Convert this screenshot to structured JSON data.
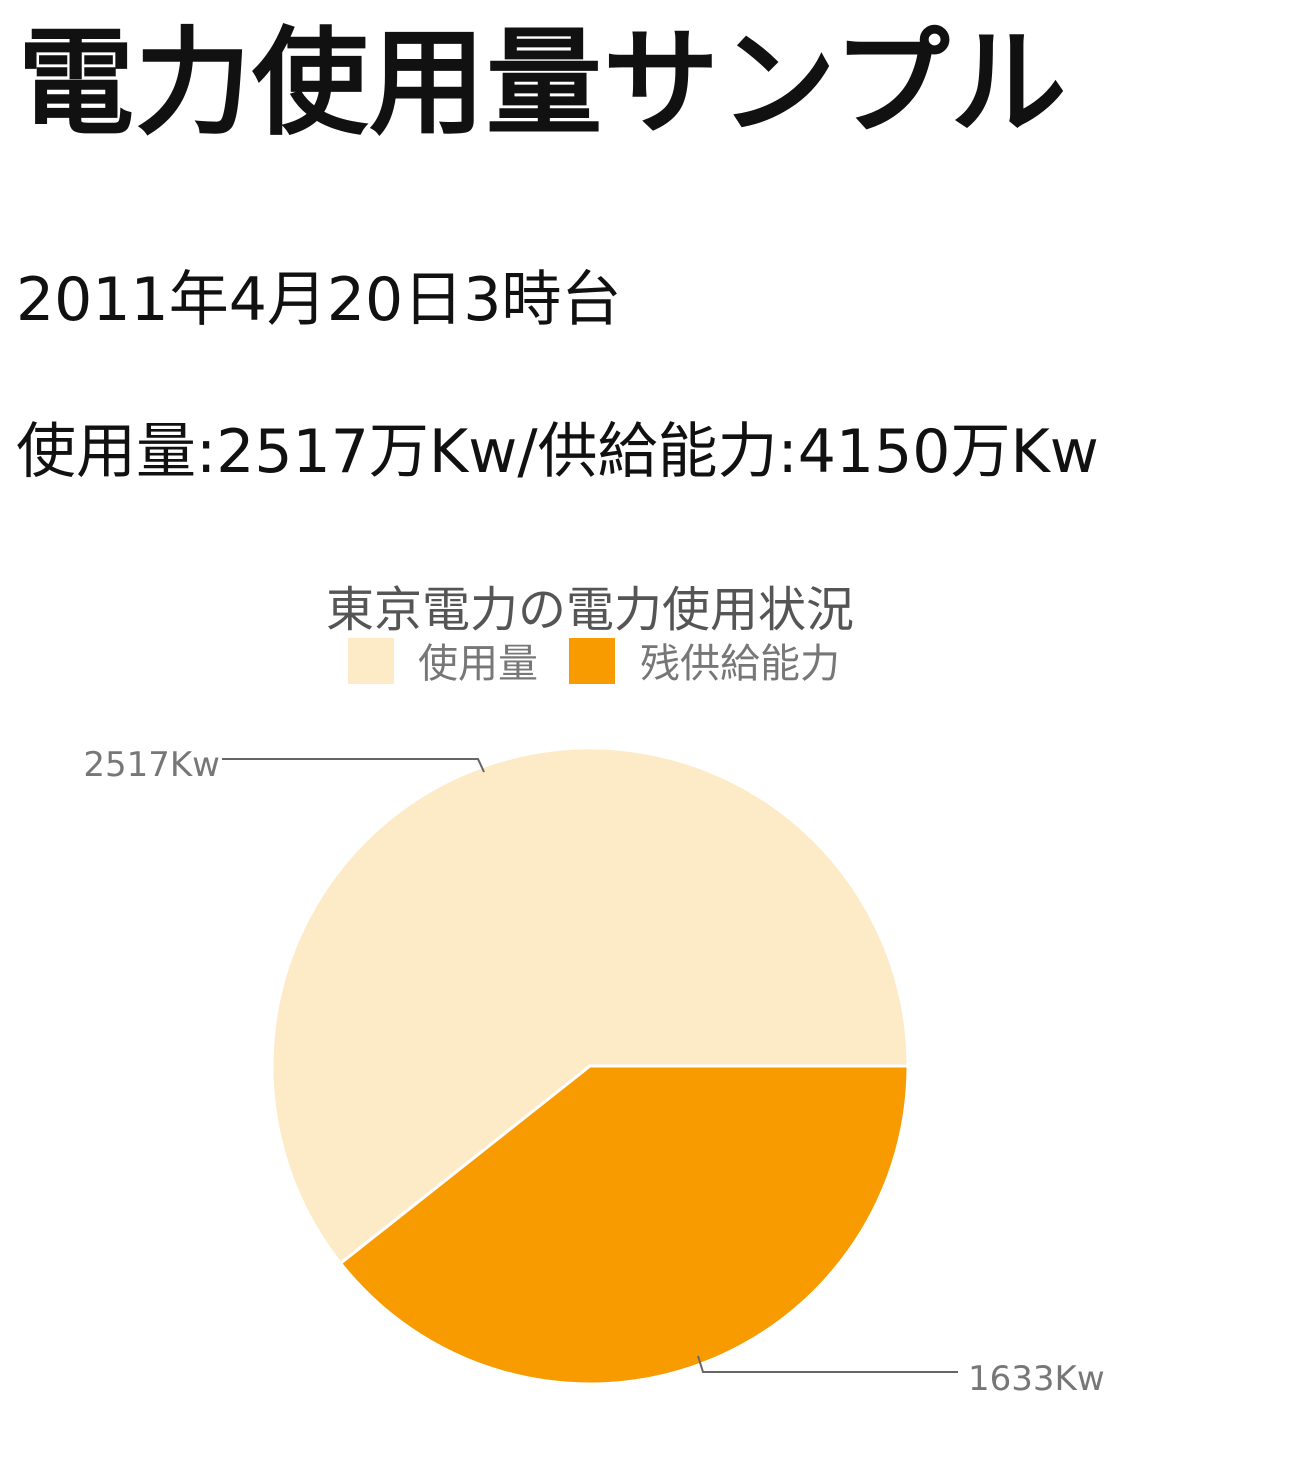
{
  "page": {
    "title": "電力使用量サンプル",
    "date": "2011年4月20日3時台",
    "summary": "使用量:2517万Kw/供給能力:4150万Kw"
  },
  "chart_data": {
    "type": "pie",
    "title": "東京電力の電力使用状況",
    "legend_position": "top",
    "slices": [
      {
        "label": "使用量",
        "value": 2517,
        "value_label": "2517Kw",
        "color": "#fdebc8"
      },
      {
        "label": "残供給能力",
        "value": 1633,
        "value_label": "1633Kw",
        "color": "#f79b00"
      }
    ],
    "start_angle_deg": 0,
    "direction": "counterclockwise"
  }
}
